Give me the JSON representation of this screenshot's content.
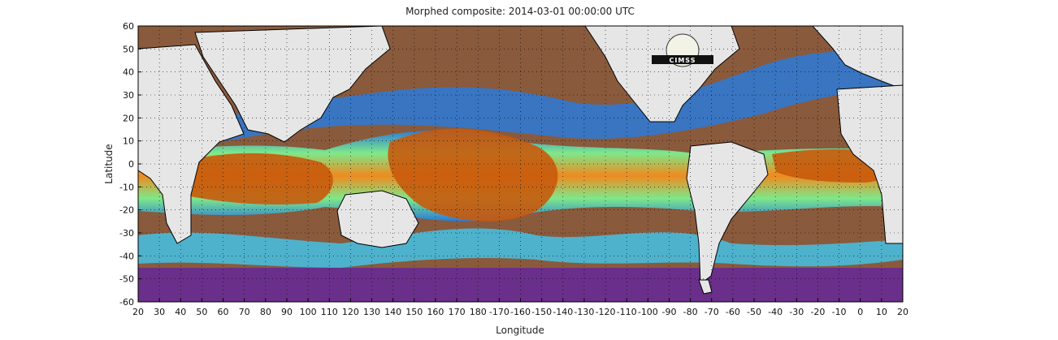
{
  "chart_data": {
    "type": "heatmap",
    "title": "Morphed composite: 2014-03-01 00:00:00 UTC",
    "xlabel": "Longitude",
    "ylabel": "Latitude",
    "xlim": [
      20,
      380
    ],
    "ylim": [
      -60,
      60
    ],
    "x_ticks": [
      20,
      30,
      40,
      50,
      60,
      70,
      80,
      90,
      100,
      110,
      120,
      130,
      140,
      150,
      160,
      170,
      180,
      190,
      200,
      210,
      220,
      230,
      240,
      250,
      260,
      270,
      280,
      290,
      300,
      310,
      320,
      330,
      340,
      350,
      360,
      370,
      380
    ],
    "x_tick_labels": [
      "20",
      "30",
      "40",
      "50",
      "60",
      "70",
      "80",
      "90",
      "100",
      "110",
      "120",
      "130",
      "140",
      "150",
      "160",
      "170",
      "180",
      "-170",
      "-160",
      "-150",
      "-140",
      "-130",
      "-120",
      "-110",
      "-100",
      "-90",
      "-80",
      "-70",
      "-60",
      "-50",
      "-40",
      "-30",
      "-20",
      "-10",
      "0",
      "10",
      "20"
    ],
    "y_ticks": [
      60,
      50,
      40,
      30,
      20,
      10,
      0,
      -10,
      -20,
      -30,
      -40,
      -50,
      -60
    ],
    "y_tick_labels": [
      "60",
      "50",
      "40",
      "30",
      "20",
      "10",
      "0",
      "-10",
      "-20",
      "-30",
      "-40",
      "-50",
      "-60"
    ],
    "grid": true,
    "grid_style": "dotted",
    "colors": {
      "land": "#e6e6e6",
      "very_dry": "#8a5a3c",
      "dry": "#6a2f8a",
      "mid_low": "#2a7ad8",
      "mid": "#3ec8f0",
      "mid_high": "#7ee88a",
      "moist": "#f08a1e",
      "very_moist": "#c85a0c"
    },
    "logo_label": "CIMSS"
  }
}
